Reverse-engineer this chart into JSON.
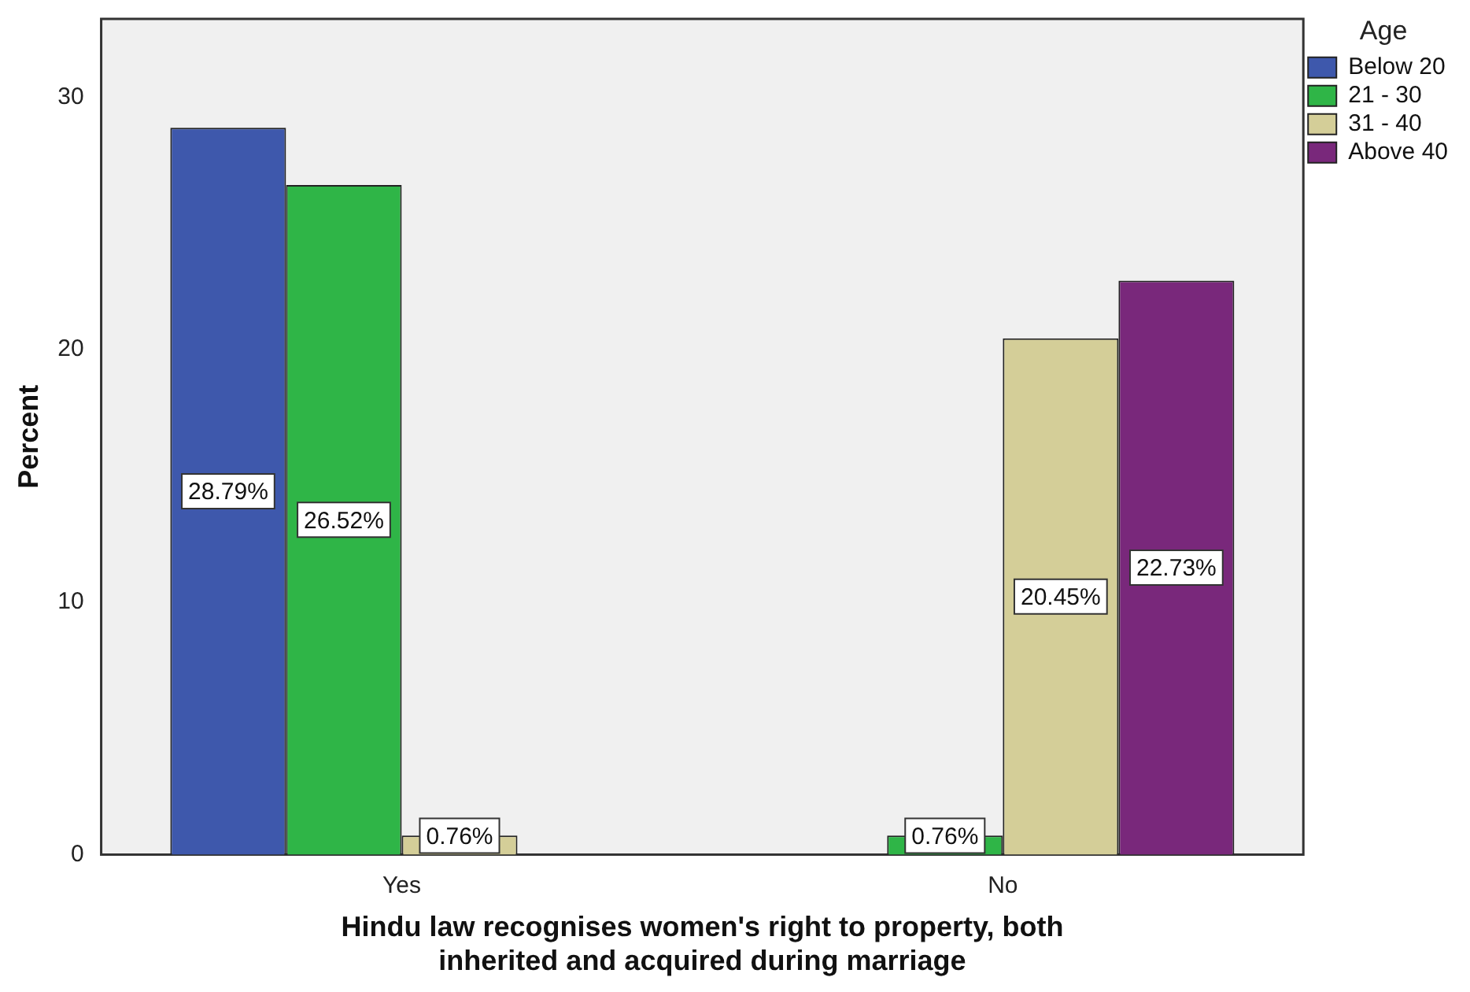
{
  "chart_data": {
    "type": "bar",
    "xlabel": "Hindu law recognises women's right to property, both\ninherited and acquired during marriage",
    "ylabel": "Percent",
    "legend_title": "Age",
    "categories": [
      "Yes",
      "No"
    ],
    "series": [
      {
        "name": "Below 20",
        "color": "#3e58ac",
        "values": [
          28.79,
          null
        ],
        "value_labels": [
          "28.79%",
          null
        ]
      },
      {
        "name": "21 - 30",
        "color": "#2fb547",
        "values": [
          26.52,
          0.76
        ],
        "value_labels": [
          "26.52%",
          "0.76%"
        ]
      },
      {
        "name": "31 - 40",
        "color": "#d4ce98",
        "values": [
          0.76,
          20.45
        ],
        "value_labels": [
          "0.76%",
          "20.45%"
        ]
      },
      {
        "name": "Above 40",
        "color": "#79287b",
        "values": [
          null,
          22.73
        ],
        "value_labels": [
          null,
          "22.73%"
        ]
      }
    ],
    "ylim": [
      0,
      33.1
    ],
    "yticks": [
      0,
      10,
      20,
      30
    ],
    "grid": false,
    "legend": "top right"
  }
}
